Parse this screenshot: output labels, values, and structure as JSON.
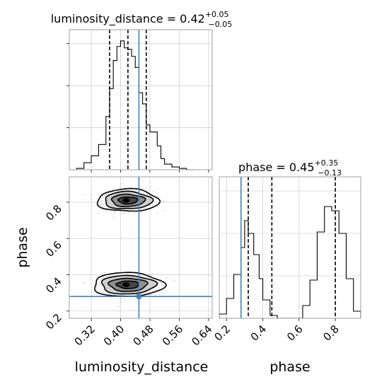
{
  "chart_data": [
    {
      "type": "histogram",
      "panel": "luminosity_distance marginal",
      "title": {
        "main": "luminosity_distance = 0.42",
        "sup": "+0.05",
        "sub": "−0.05"
      },
      "x_range": [
        0.26,
        0.65
      ],
      "y_range": [
        0,
        1.0
      ],
      "x_ticks": [
        0.32,
        0.4,
        0.48,
        0.56,
        0.64
      ],
      "show_x_tick_labels": false,
      "show_y_tick_labels": false,
      "grid": true,
      "bins": {
        "edges": [
          0.28,
          0.3,
          0.32,
          0.34,
          0.36,
          0.37,
          0.38,
          0.39,
          0.4,
          0.41,
          0.42,
          0.43,
          0.44,
          0.45,
          0.46,
          0.47,
          0.48,
          0.49,
          0.5,
          0.51,
          0.52,
          0.54,
          0.56,
          0.58,
          0.6
        ],
        "heights": [
          0.01,
          0.05,
          0.1,
          0.18,
          0.38,
          0.58,
          0.78,
          0.88,
          0.92,
          0.87,
          0.86,
          0.81,
          0.73,
          0.55,
          0.47,
          0.32,
          0.27,
          0.27,
          0.17,
          0.08,
          0.04,
          0.02,
          0.01,
          0.0
        ]
      },
      "quantile_lines": [
        0.37,
        0.42,
        0.47
      ],
      "truth_value": 0.45
    },
    {
      "type": "histogram",
      "panel": "phase marginal",
      "title": {
        "main": "phase = 0.45",
        "sup": "+0.35",
        "sub": "−0.13"
      },
      "x_range": [
        0.16,
        0.94
      ],
      "y_range": [
        0,
        1.0
      ],
      "x_ticks": [
        0.2,
        0.4,
        0.6,
        0.8
      ],
      "x_tick_labels": [
        "0.2",
        "0.4",
        "0.6",
        "0.8"
      ],
      "xlabel": "phase",
      "grid": true,
      "bins": {
        "edges": [
          0.16,
          0.2,
          0.24,
          0.28,
          0.3,
          0.32,
          0.35,
          0.38,
          0.4,
          0.44,
          0.48,
          0.62,
          0.66,
          0.7,
          0.74,
          0.78,
          0.82,
          0.86,
          0.9,
          0.94
        ],
        "heights": [
          0.03,
          0.14,
          0.31,
          0.5,
          0.69,
          0.6,
          0.45,
          0.28,
          0.13,
          0.02,
          0.0,
          0.09,
          0.27,
          0.61,
          0.79,
          0.76,
          0.6,
          0.28,
          0.05
        ]
      },
      "quantile_lines": [
        0.32,
        0.45,
        0.8
      ],
      "truth_value": 0.28
    },
    {
      "type": "2d-density-contour",
      "panel": "phase vs luminosity_distance",
      "x_range": [
        0.26,
        0.65
      ],
      "y_range": [
        0.16,
        0.94
      ],
      "x_ticks": [
        0.32,
        0.4,
        0.48,
        0.56,
        0.64
      ],
      "x_tick_labels": [
        "0.32",
        "0.40",
        "0.48",
        "0.56",
        "0.64"
      ],
      "y_ticks": [
        0.2,
        0.4,
        0.6,
        0.8
      ],
      "y_tick_labels": [
        "0.2",
        "0.4",
        "0.6",
        "0.8"
      ],
      "xlabel": "luminosity_distance",
      "ylabel": "phase",
      "grid": true,
      "modes": [
        {
          "center": [
            0.42,
            0.81
          ],
          "spread": [
            0.035,
            0.028
          ]
        },
        {
          "center": [
            0.42,
            0.345
          ],
          "spread": [
            0.04,
            0.03
          ]
        }
      ],
      "contour_levels": [
        1.0,
        1.7,
        2.3,
        3.0
      ],
      "contour_fills": [
        "#f4f4f4",
        "#cfcfcf",
        "#8e8e8e",
        "#454545"
      ],
      "truth_point": [
        0.45,
        0.28
      ]
    }
  ],
  "colors": {
    "truth": "#4682b4",
    "line": "#000000",
    "grid": "#c0c0c0",
    "scatter": "#9a9a9a"
  }
}
